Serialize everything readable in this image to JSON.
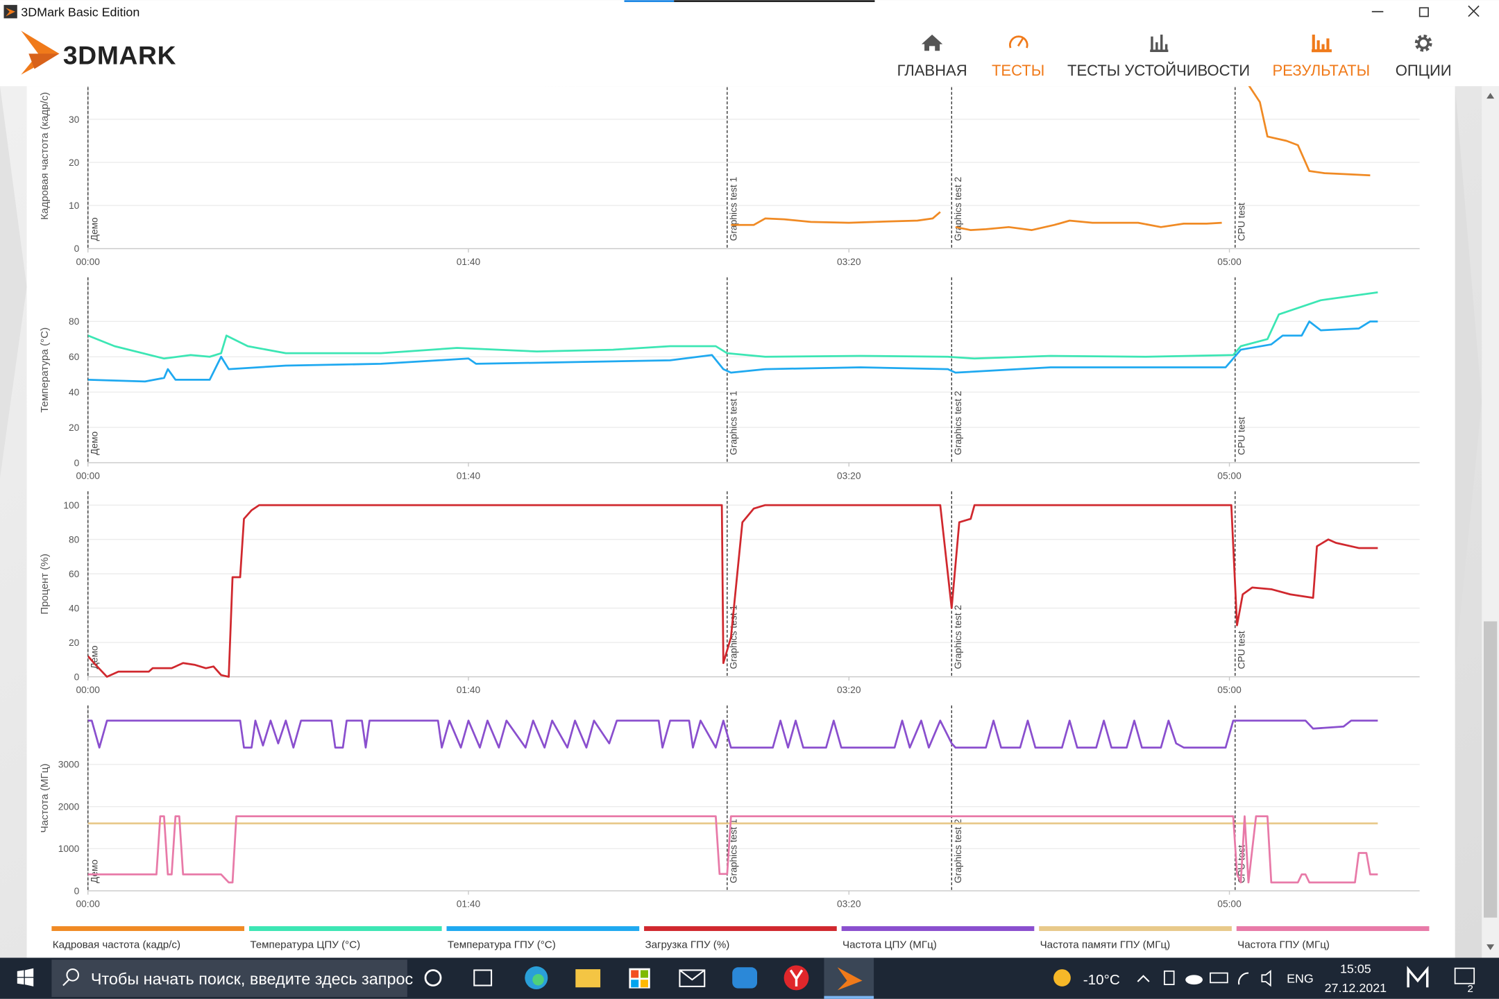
{
  "window": {
    "title": "3DMark Basic Edition"
  },
  "app": {
    "logo": "3DMARK",
    "nav": [
      {
        "label": "ГЛАВНАЯ"
      },
      {
        "label": "ТЕСТЫ"
      },
      {
        "label": "ТЕСТЫ УСТОЙЧИВОСТИ"
      },
      {
        "label": "РЕЗУЛЬТАТЫ"
      },
      {
        "label": "ОПЦИИ"
      }
    ]
  },
  "chart_data": [
    {
      "type": "line",
      "ylabel": "Кадровая частота (кадр/с)",
      "xlim": [
        0,
        350
      ],
      "xticks": [
        {
          "value": 0,
          "label": "00:00"
        },
        {
          "value": 100,
          "label": "01:40"
        },
        {
          "value": 200,
          "label": "03:20"
        },
        {
          "value": 300,
          "label": "05:00"
        }
      ],
      "ylim": [
        0,
        43
      ],
      "yticks": [
        0,
        10,
        20,
        30
      ],
      "grid": true,
      "markers": [
        {
          "x": 0,
          "label": "Демо"
        },
        {
          "x": 168,
          "label": "Graphics test 1"
        },
        {
          "x": 227,
          "label": "Graphics test 2"
        },
        {
          "x": 301.5,
          "label": "CPU test"
        }
      ],
      "series": [
        {
          "name": "Кадровая частота (кадр/с)",
          "color": "#f08a24",
          "x": [
            169,
            172,
            175,
            178,
            183,
            190,
            200,
            210,
            218,
            222,
            224,
            226,
            228,
            232,
            236,
            242,
            248,
            254,
            258,
            264,
            270,
            276,
            282,
            288,
            294,
            298,
            300,
            305,
            308,
            310,
            315,
            318,
            320,
            321,
            325,
            330,
            337
          ],
          "values": [
            5.5,
            5.5,
            5.5,
            7,
            6.8,
            6.2,
            6,
            6.3,
            6.5,
            7,
            8.5,
            null,
            5,
            4.3,
            4.5,
            5,
            4.3,
            5.5,
            6.5,
            6,
            6,
            6,
            5,
            5.8,
            5.8,
            6,
            null,
            38,
            34,
            26,
            25,
            24,
            20,
            18,
            17.5,
            17.3,
            17
          ]
        }
      ]
    },
    {
      "type": "line",
      "ylabel": "Температура (°C)",
      "xlim": [
        0,
        350
      ],
      "xticks": [
        {
          "value": 0,
          "label": "00:00"
        },
        {
          "value": 100,
          "label": "01:40"
        },
        {
          "value": 200,
          "label": "03:20"
        },
        {
          "value": 300,
          "label": "05:00"
        }
      ],
      "ylim": [
        0,
        105
      ],
      "yticks": [
        0,
        20,
        40,
        60,
        80
      ],
      "grid": true,
      "markers": [
        {
          "x": 0,
          "label": "Демо"
        },
        {
          "x": 168,
          "label": "Graphics test 1"
        },
        {
          "x": 227,
          "label": "Graphics test 2"
        },
        {
          "x": 301.5,
          "label": "CPU test"
        }
      ],
      "series": [
        {
          "name": "Температура ЦПУ (°C)",
          "color": "#3ce6b4",
          "x": [
            0,
            7,
            20,
            27,
            32,
            35,
            36.4,
            42,
            52,
            77,
            97,
            118,
            138,
            153,
            165,
            168,
            178,
            203,
            226,
            233,
            253,
            278,
            301,
            303,
            310,
            313,
            324,
            339
          ],
          "values": [
            72,
            66,
            59,
            61,
            60,
            62,
            72,
            66,
            62,
            62,
            65,
            63,
            64,
            66,
            66,
            62,
            60,
            60.5,
            60,
            59,
            60.5,
            60,
            61,
            66,
            70,
            84,
            92,
            96.5
          ]
        },
        {
          "name": "Температура ГПУ (°C)",
          "color": "#1fa9f0",
          "x": [
            0,
            15,
            20,
            21,
            23,
            32,
            35,
            37,
            52,
            77,
            100,
            102,
            128,
            153,
            164,
            167,
            169,
            178,
            203,
            226,
            228,
            253,
            299,
            303,
            311,
            314,
            319,
            321,
            324,
            334,
            337,
            339
          ],
          "values": [
            47,
            46,
            48,
            53,
            47,
            47,
            60,
            53,
            55,
            56,
            59,
            56,
            57,
            58,
            61,
            53,
            51,
            53,
            54,
            53,
            51,
            54,
            54,
            64,
            67,
            72,
            72,
            80,
            75,
            76,
            80,
            80
          ]
        }
      ]
    },
    {
      "type": "line",
      "ylabel": "Процент (%)",
      "xlim": [
        0,
        350
      ],
      "xticks": [
        {
          "value": 0,
          "label": "00:00"
        },
        {
          "value": 100,
          "label": "01:40"
        },
        {
          "value": 200,
          "label": "03:20"
        },
        {
          "value": 300,
          "label": "05:00"
        }
      ],
      "ylim": [
        0,
        108
      ],
      "yticks": [
        0,
        20,
        40,
        60,
        80,
        100
      ],
      "grid": true,
      "markers": [
        {
          "x": 0,
          "label": "Демо"
        },
        {
          "x": 168,
          "label": "Graphics test 1"
        },
        {
          "x": 227,
          "label": "Graphics test 2"
        },
        {
          "x": 301.5,
          "label": "CPU test"
        }
      ],
      "series": [
        {
          "name": "Загрузка ГПУ (%)",
          "color": "#d0282e",
          "x": [
            0,
            2,
            5,
            8,
            16,
            17,
            22,
            25,
            28,
            31,
            33,
            35,
            37,
            38,
            40,
            41,
            43,
            45,
            166.6,
            167,
            169,
            172,
            175,
            178,
            224,
            227,
            229,
            232,
            233,
            300.5,
            302,
            303.5,
            306,
            311,
            316,
            322,
            323,
            326,
            328,
            334,
            339
          ],
          "values": [
            12,
            7,
            0,
            3,
            3,
            5,
            5,
            8,
            7,
            5,
            6,
            1,
            0,
            58,
            58,
            92,
            97,
            100,
            100,
            8,
            23,
            90,
            98,
            100,
            100,
            40,
            90,
            92,
            100,
            100,
            30,
            48,
            52,
            51,
            48,
            46,
            76,
            80,
            78,
            75,
            75
          ]
        }
      ]
    },
    {
      "type": "line",
      "ylabel": "Частота (МГц)",
      "xlim": [
        0,
        350
      ],
      "xticks": [
        {
          "value": 0,
          "label": "00:00"
        },
        {
          "value": 100,
          "label": "01:40"
        },
        {
          "value": 200,
          "label": "03:20"
        },
        {
          "value": 300,
          "label": "05:00"
        }
      ],
      "ylim": [
        0,
        4400
      ],
      "yticks": [
        0,
        1000,
        2000,
        3000
      ],
      "grid": true,
      "markers": [
        {
          "x": 0,
          "label": "Демо"
        },
        {
          "x": 168,
          "label": "Graphics test 1"
        },
        {
          "x": 227,
          "label": "Graphics test 2"
        },
        {
          "x": 301.5,
          "label": "CPU test"
        }
      ],
      "series": [
        {
          "name": "Частота ЦПУ (МГц)",
          "color": "#8a4fce",
          "x": [
            0,
            1,
            3,
            5,
            40,
            41,
            43,
            44,
            46,
            48,
            50,
            52,
            54,
            56,
            64,
            65,
            67,
            68,
            72,
            73,
            74,
            92,
            93,
            95,
            98,
            100,
            103,
            105,
            108,
            110,
            115,
            117,
            120,
            122,
            126,
            128,
            131,
            133,
            137,
            139,
            150,
            151,
            153,
            158,
            159,
            161,
            165,
            167,
            169,
            180,
            182,
            184,
            186,
            188,
            194,
            196,
            198,
            212,
            214,
            216,
            219,
            221,
            224,
            227,
            228,
            236,
            238,
            240,
            245,
            247,
            249,
            256,
            258,
            260,
            265,
            267,
            269,
            273,
            275,
            277,
            282,
            284,
            286,
            288,
            299,
            301,
            320,
            322,
            330,
            332,
            339
          ],
          "values": [
            4040,
            4040,
            3400,
            4040,
            4040,
            3400,
            3400,
            4040,
            3450,
            4040,
            3500,
            4040,
            3400,
            4040,
            4040,
            3400,
            3400,
            4040,
            4040,
            3400,
            4040,
            4040,
            3400,
            4040,
            3400,
            4040,
            3400,
            4040,
            3400,
            4040,
            3400,
            4040,
            3400,
            4040,
            3400,
            4040,
            3400,
            4040,
            3500,
            4040,
            4040,
            3400,
            4040,
            4040,
            3400,
            4040,
            3400,
            4040,
            3400,
            3400,
            4040,
            3400,
            4040,
            3400,
            3400,
            4040,
            3400,
            3400,
            4040,
            3400,
            4040,
            3400,
            4040,
            3500,
            3400,
            3400,
            4040,
            3400,
            3400,
            4040,
            3400,
            3400,
            4040,
            3400,
            3400,
            4040,
            3400,
            3400,
            4040,
            3400,
            3400,
            4040,
            3500,
            3400,
            3400,
            4040,
            4040,
            3850,
            3900,
            4040,
            4040
          ]
        },
        {
          "name": "Частота памяти ГПУ (МГц)",
          "color": "#e8c98a",
          "x": [
            0,
            339
          ],
          "values": [
            1600,
            1600
          ]
        },
        {
          "name": "Частота ГПУ (МГц)",
          "color": "#e87aa8",
          "x": [
            0,
            18,
            19,
            20,
            21,
            22,
            23,
            24,
            25,
            35,
            37,
            38,
            39,
            165,
            166,
            168,
            169,
            301,
            302,
            303,
            304,
            305,
            307,
            310,
            311,
            318,
            319,
            320,
            321,
            333,
            334,
            336,
            337,
            339
          ],
          "values": [
            390,
            390,
            1770,
            1770,
            390,
            390,
            1770,
            1770,
            390,
            390,
            200,
            200,
            1770,
            1770,
            400,
            400,
            1770,
            1770,
            400,
            200,
            1770,
            200,
            1770,
            1770,
            200,
            200,
            390,
            390,
            200,
            200,
            900,
            900,
            390,
            390
          ]
        }
      ]
    }
  ],
  "taskbar": {
    "search": "Чтобы начать поиск, введите здесь запрос",
    "weather": "-10°C",
    "language": "ENG",
    "time": "15:05",
    "date": "27.12.2021",
    "notifications": "2"
  }
}
